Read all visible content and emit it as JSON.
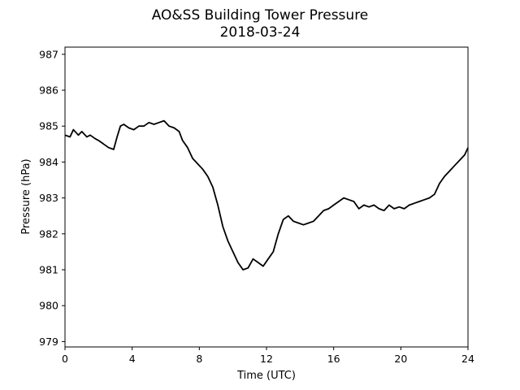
{
  "chart_data": {
    "type": "line",
    "title": "AO&SS Building Tower Pressure",
    "subtitle": "2018-03-24",
    "xlabel": "Time (UTC)",
    "ylabel": "Pressure (hPa)",
    "xlim": [
      0,
      24
    ],
    "ylim": [
      978.85,
      987.2
    ],
    "xticks": [
      0,
      4,
      8,
      12,
      16,
      20,
      24
    ],
    "yticks": [
      979,
      980,
      981,
      982,
      983,
      984,
      985,
      986,
      987
    ],
    "grid": false,
    "line_color": "#000000",
    "series": [
      {
        "x": [
          0,
          0.3,
          0.5,
          0.8,
          1.0,
          1.3,
          1.5,
          1.8,
          2.0,
          2.3,
          2.6,
          2.9,
          3.1,
          3.3,
          3.5,
          3.8,
          4.1,
          4.4,
          4.7,
          5.0,
          5.3,
          5.6,
          5.9,
          6.2,
          6.5,
          6.8,
          7.0,
          7.3,
          7.6,
          7.9,
          8.2,
          8.5,
          8.8,
          9.1,
          9.4,
          9.7,
          10.0,
          10.3,
          10.6,
          10.9,
          11.2,
          11.5,
          11.8,
          12.1,
          12.4,
          12.7,
          13.0,
          13.3,
          13.6,
          13.9,
          14.2,
          14.5,
          14.8,
          15.1,
          15.4,
          15.7,
          16.0,
          16.3,
          16.6,
          16.9,
          17.2,
          17.5,
          17.8,
          18.1,
          18.4,
          18.7,
          19.0,
          19.3,
          19.6,
          19.9,
          20.2,
          20.5,
          20.8,
          21.1,
          21.4,
          21.7,
          22.0,
          22.3,
          22.6,
          22.9,
          23.2,
          23.5,
          23.8,
          24.0
        ],
        "y": [
          984.75,
          984.7,
          984.9,
          984.75,
          984.85,
          984.7,
          984.75,
          984.65,
          984.6,
          984.5,
          984.4,
          984.35,
          984.7,
          985.0,
          985.05,
          984.95,
          984.9,
          985.0,
          985.0,
          985.1,
          985.05,
          985.1,
          985.15,
          985.0,
          984.95,
          984.85,
          984.6,
          984.4,
          984.1,
          983.95,
          983.8,
          983.6,
          983.3,
          982.8,
          982.2,
          981.8,
          981.5,
          981.2,
          981.0,
          981.05,
          981.3,
          981.2,
          981.1,
          981.3,
          981.5,
          982.0,
          982.4,
          982.5,
          982.35,
          982.3,
          982.25,
          982.3,
          982.35,
          982.5,
          982.65,
          982.7,
          982.8,
          982.9,
          983.0,
          982.95,
          982.9,
          982.7,
          982.8,
          982.75,
          982.8,
          982.7,
          982.65,
          982.8,
          982.7,
          982.75,
          982.7,
          982.8,
          982.85,
          982.9,
          982.95,
          983.0,
          983.1,
          983.4,
          983.6,
          983.75,
          983.9,
          984.05,
          984.2,
          984.4
        ]
      }
    ]
  }
}
